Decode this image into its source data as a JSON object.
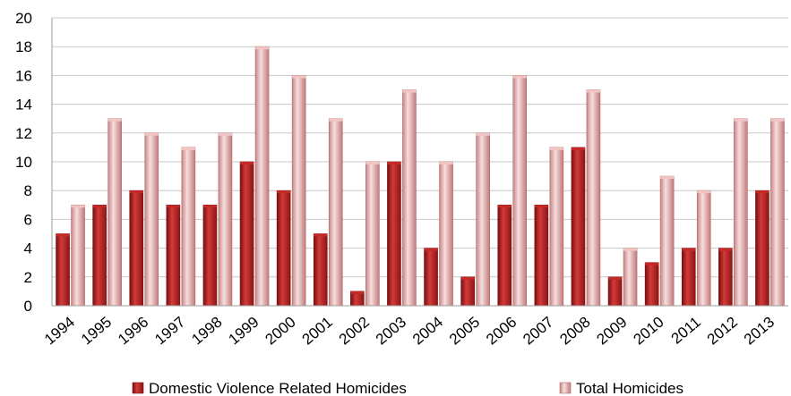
{
  "chart_data": {
    "type": "bar",
    "categories": [
      "1994",
      "1995",
      "1996",
      "1997",
      "1998",
      "1999",
      "2000",
      "2001",
      "2002",
      "2003",
      "2004",
      "2005",
      "2006",
      "2007",
      "2008",
      "2009",
      "2010",
      "2011",
      "2012",
      "2013"
    ],
    "series": [
      {
        "name": "Domestic Violence Related Homicides",
        "values": [
          5,
          7,
          8,
          7,
          7,
          10,
          8,
          5,
          1,
          10,
          4,
          2,
          7,
          7,
          11,
          2,
          3,
          4,
          4,
          8
        ],
        "color": "#b71c1c"
      },
      {
        "name": "Total Homicides",
        "values": [
          7,
          13,
          12,
          11,
          12,
          18,
          16,
          13,
          10,
          15,
          10,
          12,
          16,
          11,
          15,
          4,
          9,
          8,
          13,
          13
        ],
        "color": "#e8a5a5"
      }
    ],
    "yticks": [
      "0",
      "2",
      "4",
      "6",
      "8",
      "10",
      "12",
      "14",
      "16",
      "18",
      "20"
    ],
    "ylim": [
      0,
      20
    ],
    "grid": true,
    "legend_position": "bottom"
  }
}
